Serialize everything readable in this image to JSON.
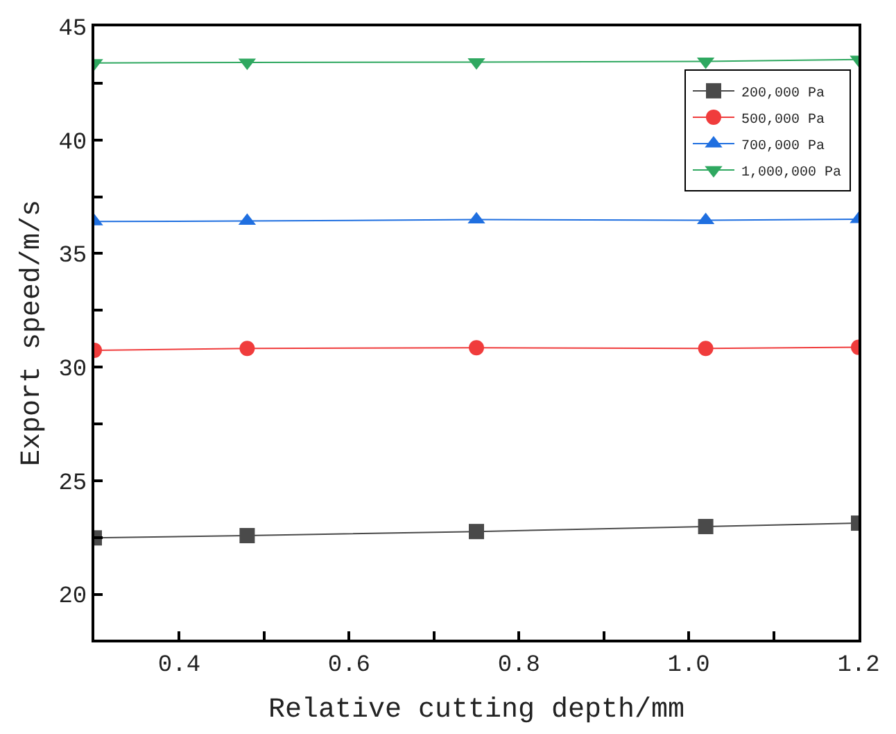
{
  "chart_data": {
    "type": "line",
    "xlabel": "Relative cutting depth/mm",
    "ylabel": "Export speed/m/s",
    "x": [
      0.3,
      0.48,
      0.75,
      1.02,
      1.2
    ],
    "series": [
      {
        "name": "200,000 Pa",
        "color": "#4a4a4a",
        "marker": "square",
        "values": [
          22.48,
          22.58,
          22.76,
          22.98,
          23.13
        ]
      },
      {
        "name": "500,000 Pa",
        "color": "#f03c3c",
        "marker": "circle",
        "values": [
          30.74,
          30.82,
          30.85,
          30.82,
          30.87
        ]
      },
      {
        "name": "700,000 Pa",
        "color": "#1f6fe0",
        "marker": "triangle",
        "values": [
          36.41,
          36.43,
          36.49,
          36.46,
          36.51
        ]
      },
      {
        "name": "1,000,000 Pa",
        "color": "#2fa860",
        "marker": "triangle_down",
        "values": [
          43.39,
          43.41,
          43.43,
          43.46,
          43.54
        ]
      }
    ],
    "xlim": [
      0.3,
      1.2
    ],
    "xticks": [
      {
        "value": 0.4,
        "label": "0.4"
      },
      {
        "value": 0.5,
        "label": null
      },
      {
        "value": 0.6,
        "label": "0.6"
      },
      {
        "value": 0.7,
        "label": null
      },
      {
        "value": 0.8,
        "label": "0.8"
      },
      {
        "value": 0.9,
        "label": null
      },
      {
        "value": 1.0,
        "label": "1.0"
      },
      {
        "value": 1.1,
        "label": null
      },
      {
        "value": 1.2,
        "label": "1.2"
      }
    ],
    "ylim": [
      18,
      45
    ],
    "yticks": [
      20,
      {
        "value": 22.5,
        "label": null
      },
      25,
      {
        "value": 27.5,
        "label": null
      },
      30,
      {
        "value": 32.5,
        "label": null
      },
      35,
      {
        "value": 37.5,
        "label": null
      },
      40,
      {
        "value": 42.5,
        "label": null
      },
      45
    ],
    "legend": "top right",
    "line_style": "solid"
  }
}
